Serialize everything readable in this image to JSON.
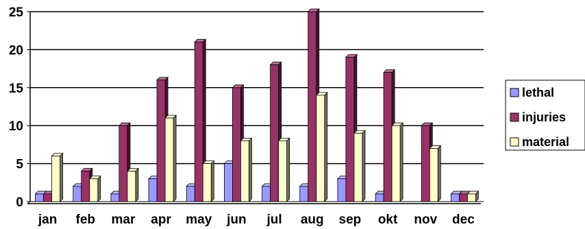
{
  "chart_data": {
    "type": "bar",
    "categories": [
      "jan",
      "feb",
      "mar",
      "apr",
      "may",
      "jun",
      "jul",
      "aug",
      "sep",
      "okt",
      "nov",
      "dec"
    ],
    "series": [
      {
        "name": "lethal",
        "color": "#9999ff",
        "values": [
          1,
          2,
          1,
          3,
          2,
          5,
          2,
          2,
          3,
          1,
          0,
          1
        ]
      },
      {
        "name": "injuries",
        "color": "#993366",
        "values": [
          1,
          4,
          10,
          16,
          21,
          15,
          18,
          25,
          19,
          17,
          10,
          1
        ]
      },
      {
        "name": "material",
        "color": "#ffffcc",
        "values": [
          6,
          3,
          4,
          11,
          5,
          8,
          8,
          14,
          9,
          10,
          7,
          1
        ]
      }
    ],
    "yticks": [
      "0",
      "5",
      "10",
      "15",
      "20",
      "25"
    ],
    "ylim": [
      0,
      25
    ],
    "grid": true,
    "legend": "right",
    "title": "",
    "xlabel": "",
    "ylabel": ""
  }
}
